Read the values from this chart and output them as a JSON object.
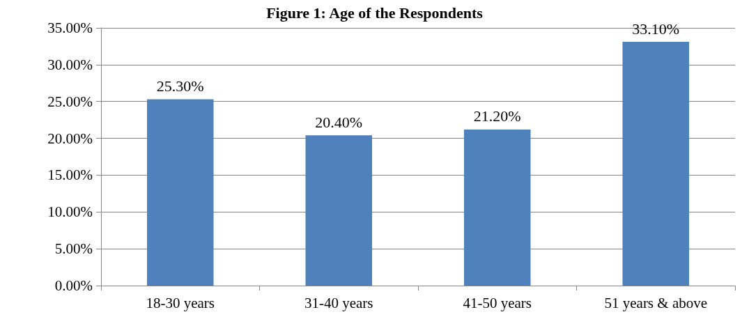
{
  "chart_data": {
    "type": "bar",
    "title": "Figure 1: Age of the Respondents",
    "categories": [
      "18-30 years",
      "31-40 years",
      "41-50 years",
      "51 years & above"
    ],
    "values": [
      25.3,
      20.4,
      21.2,
      33.1
    ],
    "value_labels": [
      "25.30%",
      "20.40%",
      "21.20%",
      "33.10%"
    ],
    "color": "#4f81bd",
    "ylim": [
      0,
      35
    ],
    "yticks": [
      {
        "value": 0,
        "label": "0.00%"
      },
      {
        "value": 5,
        "label": "5.00%"
      },
      {
        "value": 10,
        "label": "10.00%"
      },
      {
        "value": 15,
        "label": "15.00%"
      },
      {
        "value": 20,
        "label": "20.00%"
      },
      {
        "value": 25,
        "label": "25.00%"
      },
      {
        "value": 30,
        "label": "30.00%"
      },
      {
        "value": 35,
        "label": "35.00%"
      }
    ],
    "grid": "y"
  }
}
